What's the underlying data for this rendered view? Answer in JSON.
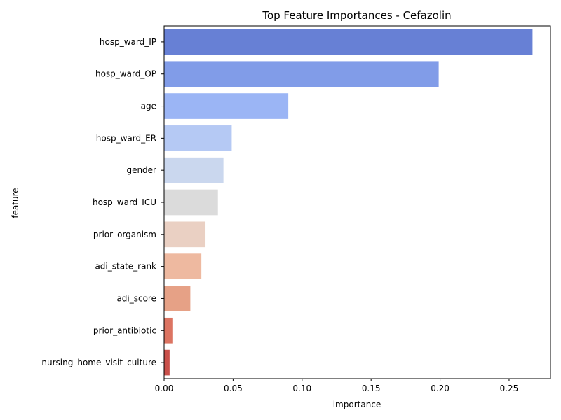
{
  "chart_data": {
    "type": "bar",
    "orientation": "horizontal",
    "title": "Top Feature Importances - Cefazolin",
    "xlabel": "importance",
    "ylabel": "feature",
    "xlim": [
      0,
      0.28
    ],
    "xticks": [
      0.0,
      0.05,
      0.1,
      0.15,
      0.2,
      0.25
    ],
    "xtick_labels": [
      "0.00",
      "0.05",
      "0.10",
      "0.15",
      "0.20",
      "0.25"
    ],
    "grid": false,
    "categories": [
      "hosp_ward_IP",
      "hosp_ward_OP",
      "age",
      "hosp_ward_ER",
      "gender",
      "hosp_ward_ICU",
      "prior_organism",
      "adi_state_rank",
      "adi_score",
      "prior_antibiotic",
      "nursing_home_visit_culture"
    ],
    "values": [
      0.267,
      0.199,
      0.09,
      0.049,
      0.043,
      0.039,
      0.03,
      0.027,
      0.019,
      0.006,
      0.004
    ],
    "colors": [
      "#6780d5",
      "#819ce8",
      "#9bb5f5",
      "#b5c9f4",
      "#cad7ee",
      "#dbdbdb",
      "#ead0c3",
      "#eeb9a0",
      "#e6a186",
      "#dc7462",
      "#c9504a"
    ]
  }
}
